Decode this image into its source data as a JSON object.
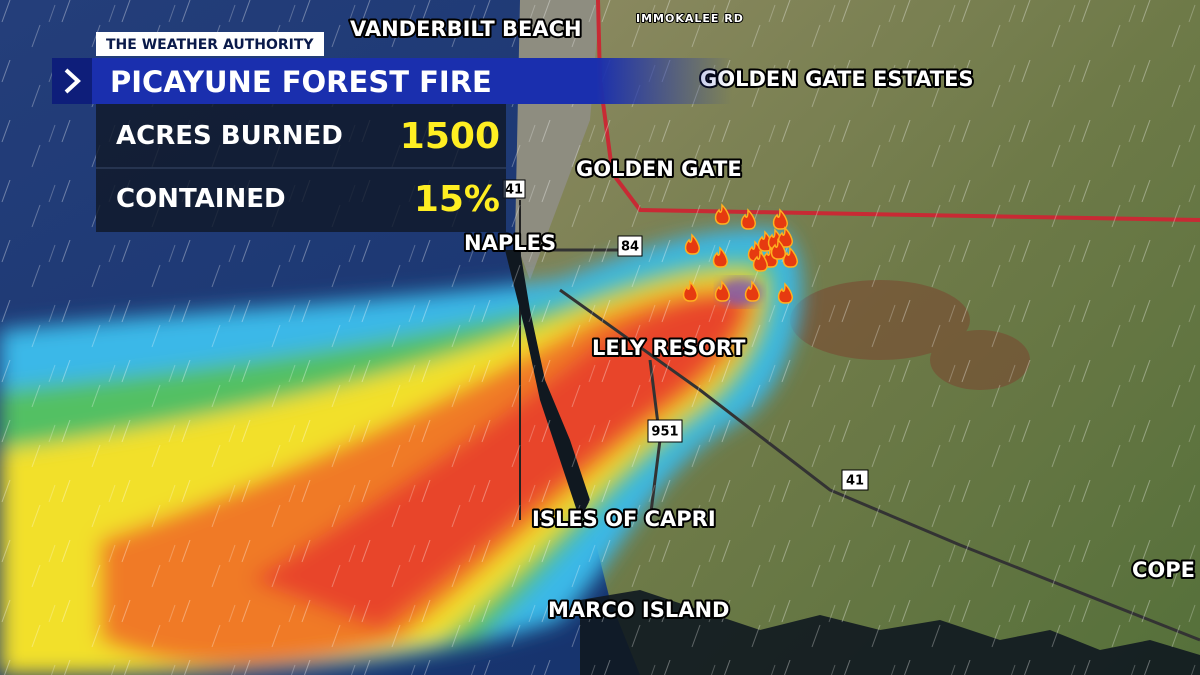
{
  "header": {
    "brand": "THE WEATHER AUTHORITY",
    "title": "PICAYUNE FOREST FIRE"
  },
  "stats": [
    {
      "label": "ACRES BURNED",
      "value": "1500"
    },
    {
      "label": "CONTAINED",
      "value": "15%"
    }
  ],
  "map": {
    "places": [
      "VANDERBILT BEACH",
      "GOLDEN GATE ESTATES",
      "GOLDEN GATE",
      "NAPLES",
      "LELY RESORT",
      "ISLES OF CAPRI",
      "MARCO ISLAND",
      "COPE"
    ],
    "road_label": "IMMOKALEE RD",
    "shields": [
      "41",
      "84",
      "951",
      "41"
    ]
  }
}
